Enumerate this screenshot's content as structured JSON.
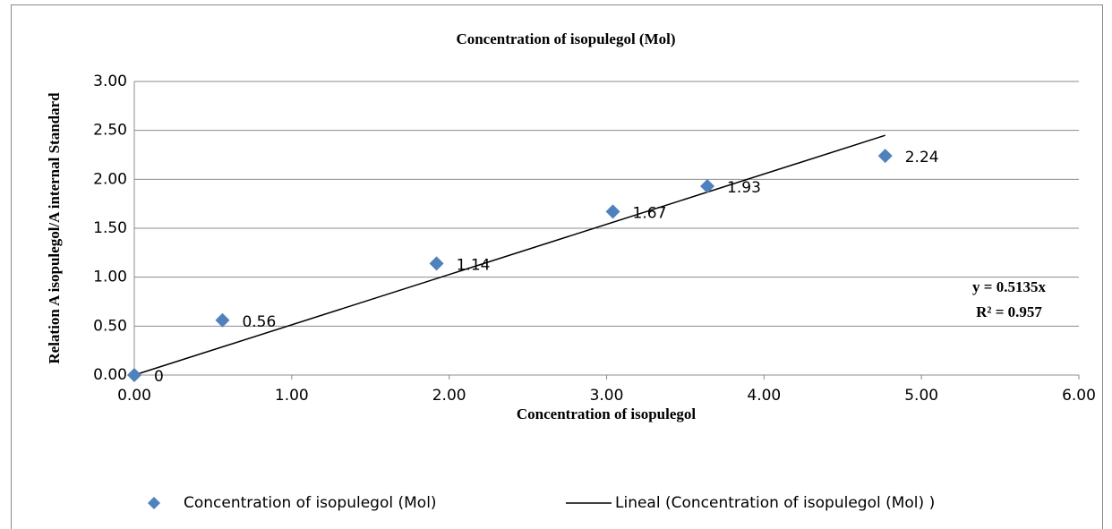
{
  "chart_data": {
    "type": "scatter",
    "title": "Concentration of isopulegol (Mol)",
    "x_label": "Concentration of isopulegol",
    "y_label": "Relation A isopulegol/A internal Standard",
    "series": [
      {
        "name": "Concentration of isopulegol (Mol)",
        "color": "#4f81bd",
        "x": [
          0,
          0.56,
          1.92,
          3.04,
          3.64,
          4.77
        ],
        "values": [
          0,
          0.56,
          1.14,
          1.67,
          1.93,
          2.24
        ]
      }
    ],
    "trendline": {
      "name": "Lineal (Concentration of isopulegol (Mol) )",
      "color": "#000000",
      "slope": 0.5135,
      "equation": "y = 0.5135x",
      "r_squared": "R² = 0.957"
    },
    "xlim": [
      0,
      6
    ],
    "ylim": [
      0,
      3
    ],
    "xticks": [
      {
        "value": 0,
        "label": "0.00"
      },
      {
        "value": 1,
        "label": "1.00"
      },
      {
        "value": 2,
        "label": "2.00"
      },
      {
        "value": 3,
        "label": "3.00"
      },
      {
        "value": 4,
        "label": "4.00"
      },
      {
        "value": 5,
        "label": "5.00"
      },
      {
        "value": 6,
        "label": "6.00"
      }
    ],
    "yticks": [
      {
        "value": 0,
        "label": "0.00"
      },
      {
        "value": 0.5,
        "label": "0.50"
      },
      {
        "value": 1,
        "label": "1.00"
      },
      {
        "value": 1.5,
        "label": "1.50"
      },
      {
        "value": 2,
        "label": "2.00"
      },
      {
        "value": 2.5,
        "label": "2.50"
      },
      {
        "value": 3,
        "label": "3.00"
      }
    ],
    "grid": true,
    "legend": "bottom"
  }
}
